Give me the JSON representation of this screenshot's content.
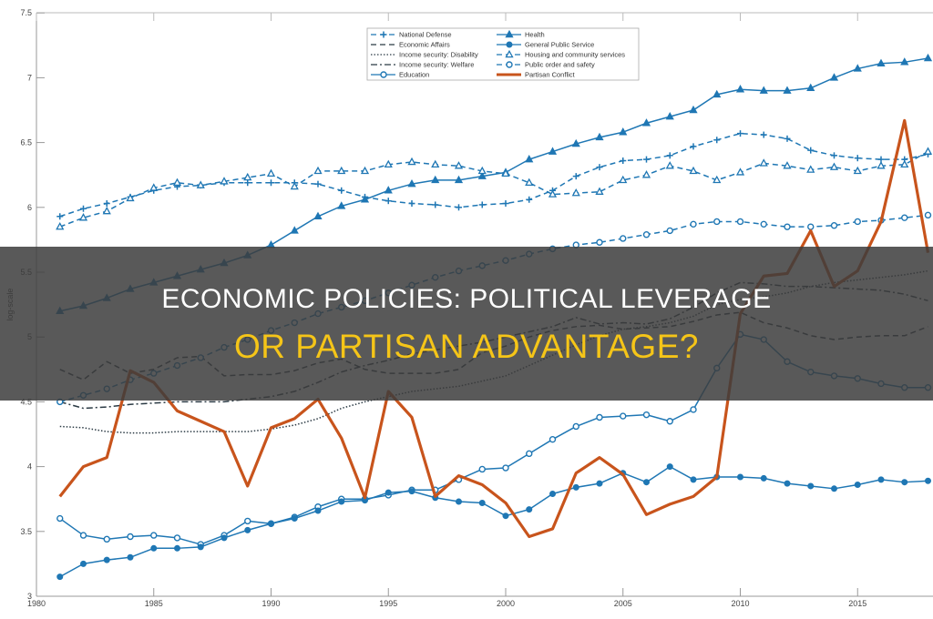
{
  "banner": {
    "line1": "ECONOMIC POLICIES: POLITICAL LEVERAGE",
    "line2": "OR PARTISAN ADVANTAGE?"
  },
  "colors": {
    "series_blue": "#1f77b4",
    "series_dark": "#2b3a44",
    "partisan": "#c8541c",
    "banner_bg": "#3c3c3c",
    "banner_line1": "#ffffff",
    "banner_line2": "#f5c518"
  },
  "chart_data": {
    "type": "line",
    "title": "",
    "xlabel": "",
    "ylabel": "log-scale",
    "xlim": [
      1980,
      2018
    ],
    "ylim": [
      3,
      7.5
    ],
    "xticks": [
      1980,
      1985,
      1990,
      1995,
      2000,
      2005,
      2010,
      2015
    ],
    "yticks": [
      3,
      3.5,
      4,
      4.5,
      5,
      5.5,
      6,
      6.5,
      7,
      7.5
    ],
    "grid": false,
    "legend_position": "top-center",
    "x": [
      1981,
      1982,
      1983,
      1984,
      1985,
      1986,
      1987,
      1988,
      1989,
      1990,
      1991,
      1992,
      1993,
      1994,
      1995,
      1996,
      1997,
      1998,
      1999,
      2000,
      2001,
      2002,
      2003,
      2004,
      2005,
      2006,
      2007,
      2008,
      2009,
      2010,
      2011,
      2012,
      2013,
      2014,
      2015,
      2016,
      2017,
      2018
    ],
    "series": [
      {
        "name": "National Defense",
        "style": "dashed",
        "marker": "plus",
        "values": [
          5.93,
          5.99,
          6.03,
          6.08,
          6.13,
          6.16,
          6.17,
          6.19,
          6.19,
          6.19,
          6.19,
          6.18,
          6.13,
          6.08,
          6.05,
          6.03,
          6.02,
          6.0,
          6.02,
          6.03,
          6.06,
          6.13,
          6.24,
          6.31,
          6.36,
          6.37,
          6.4,
          6.47,
          6.52,
          6.57,
          6.56,
          6.53,
          6.44,
          6.4,
          6.38,
          6.37,
          6.37,
          6.41
        ]
      },
      {
        "name": "Economic Affairs",
        "style": "dashed",
        "marker": "none",
        "values": [
          4.75,
          4.67,
          4.81,
          4.72,
          4.75,
          4.84,
          4.85,
          4.7,
          4.71,
          4.71,
          4.74,
          4.8,
          4.83,
          4.75,
          4.72,
          4.72,
          4.72,
          4.75,
          4.88,
          4.93,
          5.0,
          5.05,
          5.08,
          5.09,
          5.06,
          5.07,
          5.08,
          5.12,
          5.17,
          5.19,
          5.11,
          5.07,
          5.01,
          4.98,
          5.0,
          5.01,
          5.01,
          5.08
        ]
      },
      {
        "name": "Income security: Disability",
        "style": "dotted",
        "marker": "none",
        "values": [
          4.31,
          4.3,
          4.27,
          4.26,
          4.26,
          4.27,
          4.27,
          4.27,
          4.27,
          4.29,
          4.32,
          4.37,
          4.45,
          4.5,
          4.54,
          4.58,
          4.6,
          4.62,
          4.66,
          4.7,
          4.78,
          4.86,
          4.94,
          5.01,
          5.06,
          5.08,
          5.11,
          5.16,
          5.25,
          5.29,
          5.31,
          5.34,
          5.39,
          5.42,
          5.44,
          5.46,
          5.48,
          5.51
        ]
      },
      {
        "name": "Income security: Welfare",
        "style": "dashdot",
        "marker": "none",
        "values": [
          4.5,
          4.45,
          4.46,
          4.48,
          4.49,
          4.5,
          4.5,
          4.5,
          4.52,
          4.54,
          4.58,
          4.65,
          4.73,
          4.78,
          4.82,
          4.87,
          4.9,
          4.93,
          4.96,
          5.0,
          5.04,
          5.08,
          5.15,
          5.1,
          5.11,
          5.1,
          5.14,
          5.23,
          5.34,
          5.42,
          5.41,
          5.39,
          5.39,
          5.38,
          5.37,
          5.36,
          5.33,
          5.28
        ]
      },
      {
        "name": "Education",
        "style": "solid",
        "marker": "circle-open",
        "values": [
          3.6,
          3.47,
          3.44,
          3.46,
          3.47,
          3.45,
          3.4,
          3.47,
          3.58,
          3.56,
          3.61,
          3.69,
          3.75,
          3.75,
          3.78,
          3.82,
          3.82,
          3.9,
          3.98,
          3.99,
          4.1,
          4.21,
          4.31,
          4.38,
          4.39,
          4.4,
          4.35,
          4.44,
          4.76,
          5.02,
          4.98,
          4.81,
          4.73,
          4.7,
          4.68,
          4.64,
          4.61,
          4.61
        ]
      },
      {
        "name": "Health",
        "style": "solid",
        "marker": "triangle-filled",
        "values": [
          5.2,
          5.24,
          5.3,
          5.37,
          5.42,
          5.47,
          5.52,
          5.57,
          5.63,
          5.71,
          5.82,
          5.93,
          6.01,
          6.06,
          6.13,
          6.18,
          6.21,
          6.21,
          6.24,
          6.27,
          6.37,
          6.43,
          6.49,
          6.54,
          6.58,
          6.65,
          6.7,
          6.75,
          6.87,
          6.91,
          6.9,
          6.9,
          6.92,
          7.0,
          7.07,
          7.11,
          7.12,
          7.15
        ]
      },
      {
        "name": "General Public Service",
        "style": "solid",
        "marker": "circle-filled",
        "values": [
          3.15,
          3.25,
          3.28,
          3.3,
          3.37,
          3.37,
          3.38,
          3.45,
          3.51,
          3.56,
          3.6,
          3.66,
          3.73,
          3.74,
          3.8,
          3.81,
          3.76,
          3.73,
          3.72,
          3.62,
          3.67,
          3.79,
          3.84,
          3.87,
          3.95,
          3.88,
          4.0,
          3.9,
          3.92,
          3.92,
          3.91,
          3.87,
          3.85,
          3.83,
          3.86,
          3.9,
          3.88,
          3.89
        ]
      },
      {
        "name": "Housing and community services",
        "style": "dashed",
        "marker": "triangle-open",
        "values": [
          5.85,
          5.92,
          5.97,
          6.07,
          6.15,
          6.19,
          6.17,
          6.2,
          6.23,
          6.26,
          6.16,
          6.28,
          6.28,
          6.28,
          6.33,
          6.35,
          6.33,
          6.32,
          6.28,
          6.26,
          6.19,
          6.1,
          6.11,
          6.12,
          6.21,
          6.25,
          6.32,
          6.28,
          6.21,
          6.27,
          6.34,
          6.32,
          6.29,
          6.31,
          6.28,
          6.32,
          6.33,
          6.43
        ]
      },
      {
        "name": "Public order and safety",
        "style": "dashed",
        "marker": "circle-open",
        "values": [
          4.5,
          4.55,
          4.6,
          4.67,
          4.72,
          4.78,
          4.84,
          4.92,
          4.98,
          5.05,
          5.11,
          5.18,
          5.23,
          5.28,
          5.34,
          5.4,
          5.46,
          5.51,
          5.55,
          5.59,
          5.64,
          5.68,
          5.71,
          5.73,
          5.76,
          5.79,
          5.82,
          5.87,
          5.89,
          5.89,
          5.87,
          5.85,
          5.85,
          5.86,
          5.89,
          5.9,
          5.92,
          5.94
        ]
      },
      {
        "name": "Partisan Conflict",
        "style": "solid-thick",
        "marker": "none",
        "values": [
          3.77,
          4.0,
          4.07,
          4.74,
          4.65,
          4.43,
          4.35,
          4.27,
          3.85,
          4.3,
          4.37,
          4.52,
          4.22,
          3.76,
          4.58,
          4.38,
          3.77,
          3.93,
          3.86,
          3.72,
          3.46,
          3.52,
          3.95,
          4.07,
          3.94,
          3.63,
          3.71,
          3.77,
          3.92,
          5.18,
          5.47,
          5.49,
          5.82,
          5.39,
          5.51,
          5.89,
          6.67,
          5.65
        ]
      }
    ],
    "legend": {
      "col1": [
        "National Defense",
        "Economic Affairs",
        "Income security: Disability",
        "Income security: Welfare",
        "Education"
      ],
      "col2": [
        "Health",
        "General Public Service",
        "Housing and community services",
        "Public order and safety",
        "Partisan Conflict"
      ]
    }
  }
}
